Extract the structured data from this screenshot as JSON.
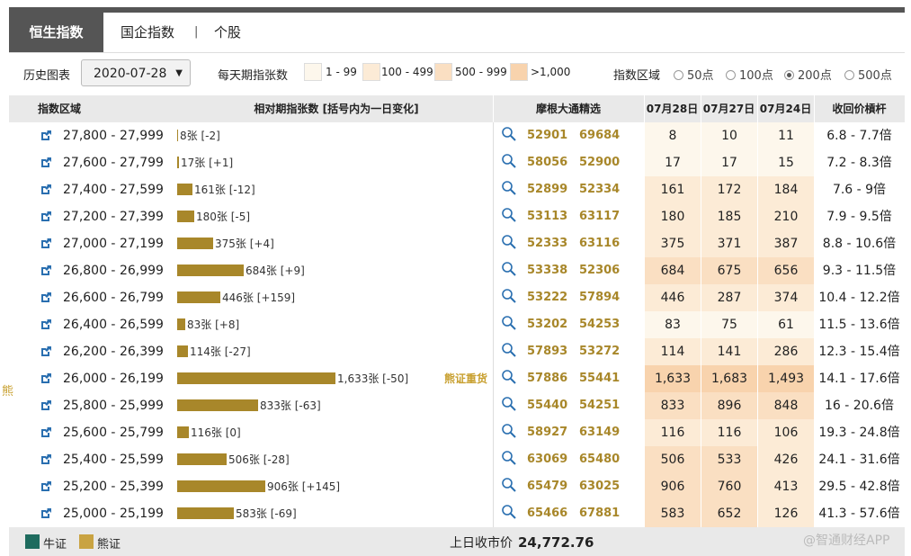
{
  "tabs": [
    "恒生指数",
    "国企指数",
    "个股"
  ],
  "tab_separator": "|",
  "filters": {
    "history_label": "历史图表",
    "date": "2020-07-28",
    "daily_label": "每天期指张数",
    "legend": [
      {
        "label": "1 - 99",
        "color": "#fdf7ec"
      },
      {
        "label": "100 - 499",
        "color": "#fcebd6"
      },
      {
        "label": "500 - 999",
        "color": "#fadfc2"
      },
      {
        "label": ">1,000",
        "color": "#f8d3ad"
      }
    ],
    "zone_label": "指数区域",
    "zone_options": [
      "50点",
      "100点",
      "200点",
      "500点"
    ],
    "zone_selected": "200点"
  },
  "table_header": {
    "range": "指数区域",
    "relative": "相对期指张数 [括号内为一日变化]",
    "picks": "摩根大通精选",
    "d1": "07月28日",
    "d2": "07月27日",
    "d3": "07月24日",
    "lever": "收回价槓杆"
  },
  "rows": [
    {
      "range": "27,800 - 27,999",
      "count": 8,
      "label": "8张 [-2]",
      "codes": [
        "52901",
        "69684"
      ],
      "d1": "8",
      "d2": "10",
      "d3": "11",
      "lever": "6.8 - 7.7倍"
    },
    {
      "range": "27,600 - 27,799",
      "count": 17,
      "label": "17张 [+1]",
      "codes": [
        "58056",
        "52900"
      ],
      "d1": "17",
      "d2": "17",
      "d3": "15",
      "lever": "7.2 - 8.3倍"
    },
    {
      "range": "27,400 - 27,599",
      "count": 161,
      "label": "161张 [-12]",
      "codes": [
        "52899",
        "52334"
      ],
      "d1": "161",
      "d2": "172",
      "d3": "184",
      "lever": "7.6 - 9倍"
    },
    {
      "range": "27,200 - 27,399",
      "count": 180,
      "label": "180张 [-5]",
      "codes": [
        "53113",
        "63117"
      ],
      "d1": "180",
      "d2": "185",
      "d3": "210",
      "lever": "7.9 - 9.5倍"
    },
    {
      "range": "27,000 - 27,199",
      "count": 375,
      "label": "375张 [+4]",
      "codes": [
        "52333",
        "63116"
      ],
      "d1": "375",
      "d2": "371",
      "d3": "387",
      "lever": "8.8 - 10.6倍"
    },
    {
      "range": "26,800 - 26,999",
      "count": 684,
      "label": "684张 [+9]",
      "codes": [
        "53338",
        "52306"
      ],
      "d1": "684",
      "d2": "675",
      "d3": "656",
      "lever": "9.3 - 11.5倍"
    },
    {
      "range": "26,600 - 26,799",
      "count": 446,
      "label": "446张 [+159]",
      "codes": [
        "53222",
        "57894"
      ],
      "d1": "446",
      "d2": "287",
      "d3": "374",
      "lever": "10.4 - 12.2倍"
    },
    {
      "range": "26,400 - 26,599",
      "count": 83,
      "label": "83张 [+8]",
      "codes": [
        "53202",
        "54253"
      ],
      "d1": "83",
      "d2": "75",
      "d3": "61",
      "lever": "11.5 - 13.6倍"
    },
    {
      "range": "26,200 - 26,399",
      "count": 114,
      "label": "114张 [-27]",
      "codes": [
        "57893",
        "53272"
      ],
      "d1": "114",
      "d2": "141",
      "d3": "286",
      "lever": "12.3 - 15.4倍"
    },
    {
      "range": "26,000 - 26,199",
      "count": 1633,
      "label": "1,633张 [-50]",
      "tag": "熊证重货",
      "codes": [
        "57886",
        "55441"
      ],
      "d1": "1,633",
      "d2": "1,683",
      "d3": "1,493",
      "lever": "14.1 - 17.6倍"
    },
    {
      "range": "25,800 - 25,999",
      "count": 833,
      "label": "833张 [-63]",
      "codes": [
        "55440",
        "54251"
      ],
      "d1": "833",
      "d2": "896",
      "d3": "848",
      "lever": "16 - 20.6倍"
    },
    {
      "range": "25,600 - 25,799",
      "count": 116,
      "label": "116张 [0]",
      "codes": [
        "58927",
        "63149"
      ],
      "d1": "116",
      "d2": "116",
      "d3": "106",
      "lever": "19.3 - 24.8倍"
    },
    {
      "range": "25,400 - 25,599",
      "count": 506,
      "label": "506张 [-28]",
      "codes": [
        "63069",
        "65480"
      ],
      "d1": "506",
      "d2": "533",
      "d3": "426",
      "lever": "24.1 - 31.6倍"
    },
    {
      "range": "25,200 - 25,399",
      "count": 906,
      "label": "906张 [+145]",
      "codes": [
        "65479",
        "63025"
      ],
      "d1": "906",
      "d2": "760",
      "d3": "413",
      "lever": "29.5 - 42.8倍"
    },
    {
      "range": "25,000 - 25,199",
      "count": 583,
      "label": "583张 [-69]",
      "codes": [
        "65466",
        "67881"
      ],
      "d1": "583",
      "d2": "652",
      "d3": "126",
      "lever": "41.3 - 57.6倍"
    }
  ],
  "side_tag": "熊",
  "footer": {
    "bull_label": "牛证",
    "bull_color": "#1e6b5e",
    "bear_label": "熊证",
    "bear_color": "#c9a342",
    "close_label": "上日收市价",
    "close_value": "24,772.76"
  },
  "watermark": "@智通财经APP"
}
